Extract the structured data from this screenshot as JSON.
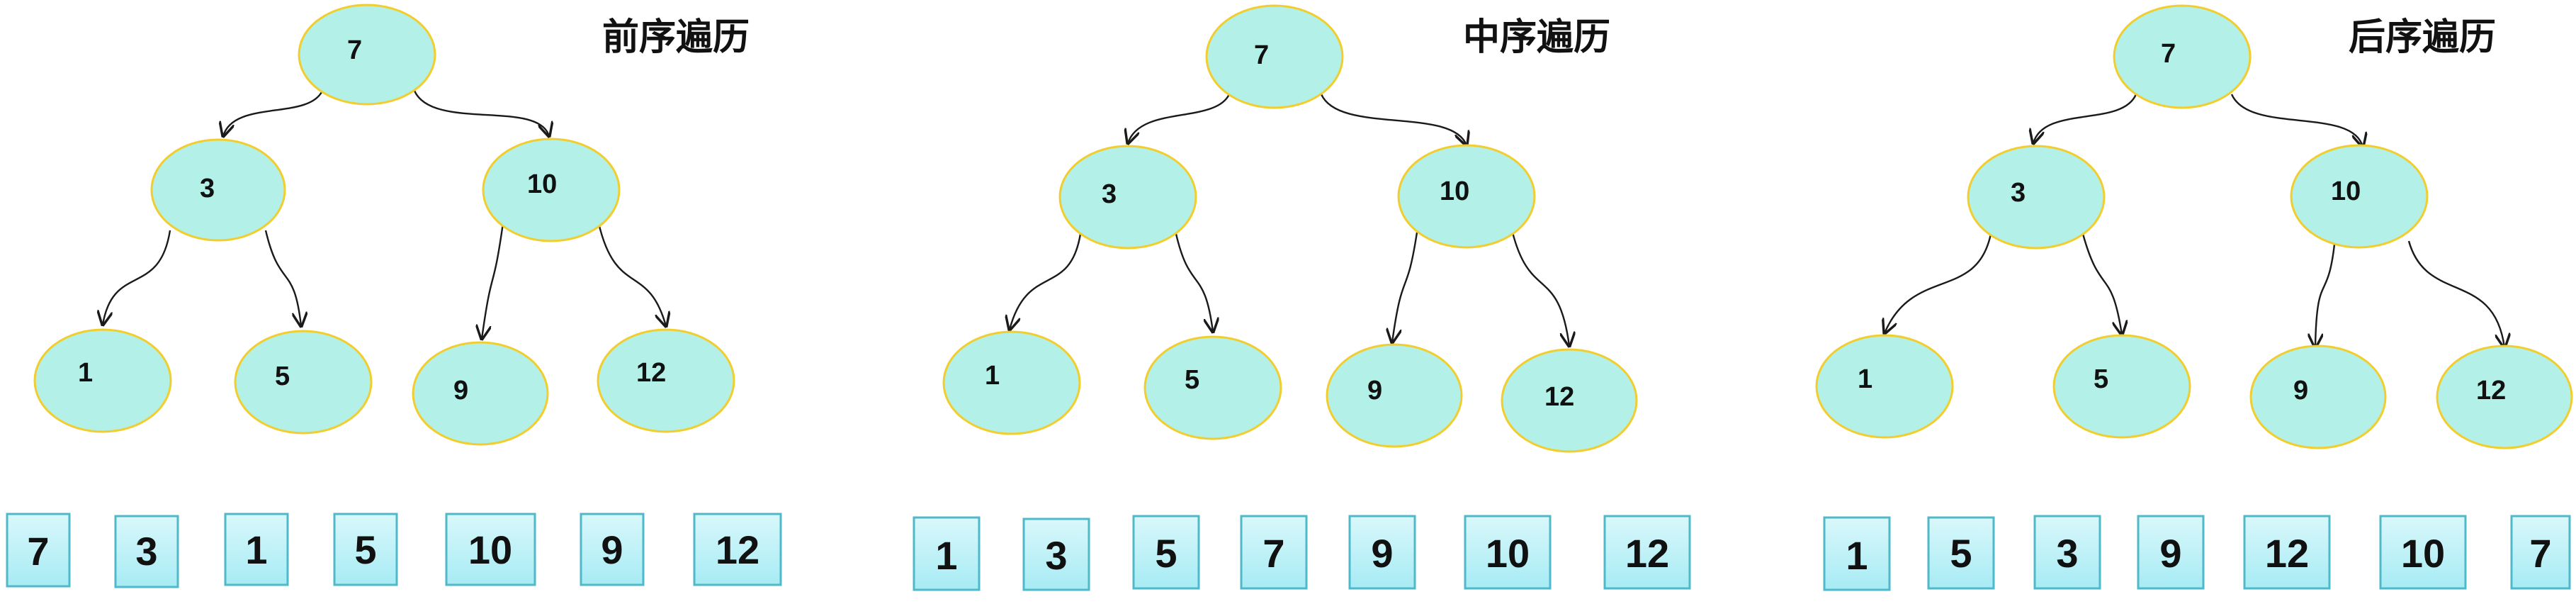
{
  "colors": {
    "node_fill": "#b3f0e8",
    "node_border": "#f2cd2e",
    "box_fill_top": "#d9f8fb",
    "box_fill_bottom": "#a7ebf4",
    "box_border": "#4fb8c9",
    "edge": "#1a1a1a"
  },
  "panels": [
    {
      "title": "前序遍历",
      "nodes": [
        "7",
        "3",
        "10",
        "1",
        "5",
        "9",
        "12"
      ],
      "sequence": [
        "7",
        "3",
        "1",
        "5",
        "10",
        "9",
        "12"
      ]
    },
    {
      "title": "中序遍历",
      "nodes": [
        "7",
        "3",
        "10",
        "1",
        "5",
        "9",
        "12"
      ],
      "sequence": [
        "1",
        "3",
        "5",
        "7",
        "9",
        "10",
        "12"
      ]
    },
    {
      "title": "后序遍历",
      "nodes": [
        "7",
        "3",
        "10",
        "1",
        "5",
        "9",
        "12"
      ],
      "sequence": [
        "1",
        "5",
        "3",
        "9",
        "12",
        "10",
        "7"
      ]
    }
  ]
}
